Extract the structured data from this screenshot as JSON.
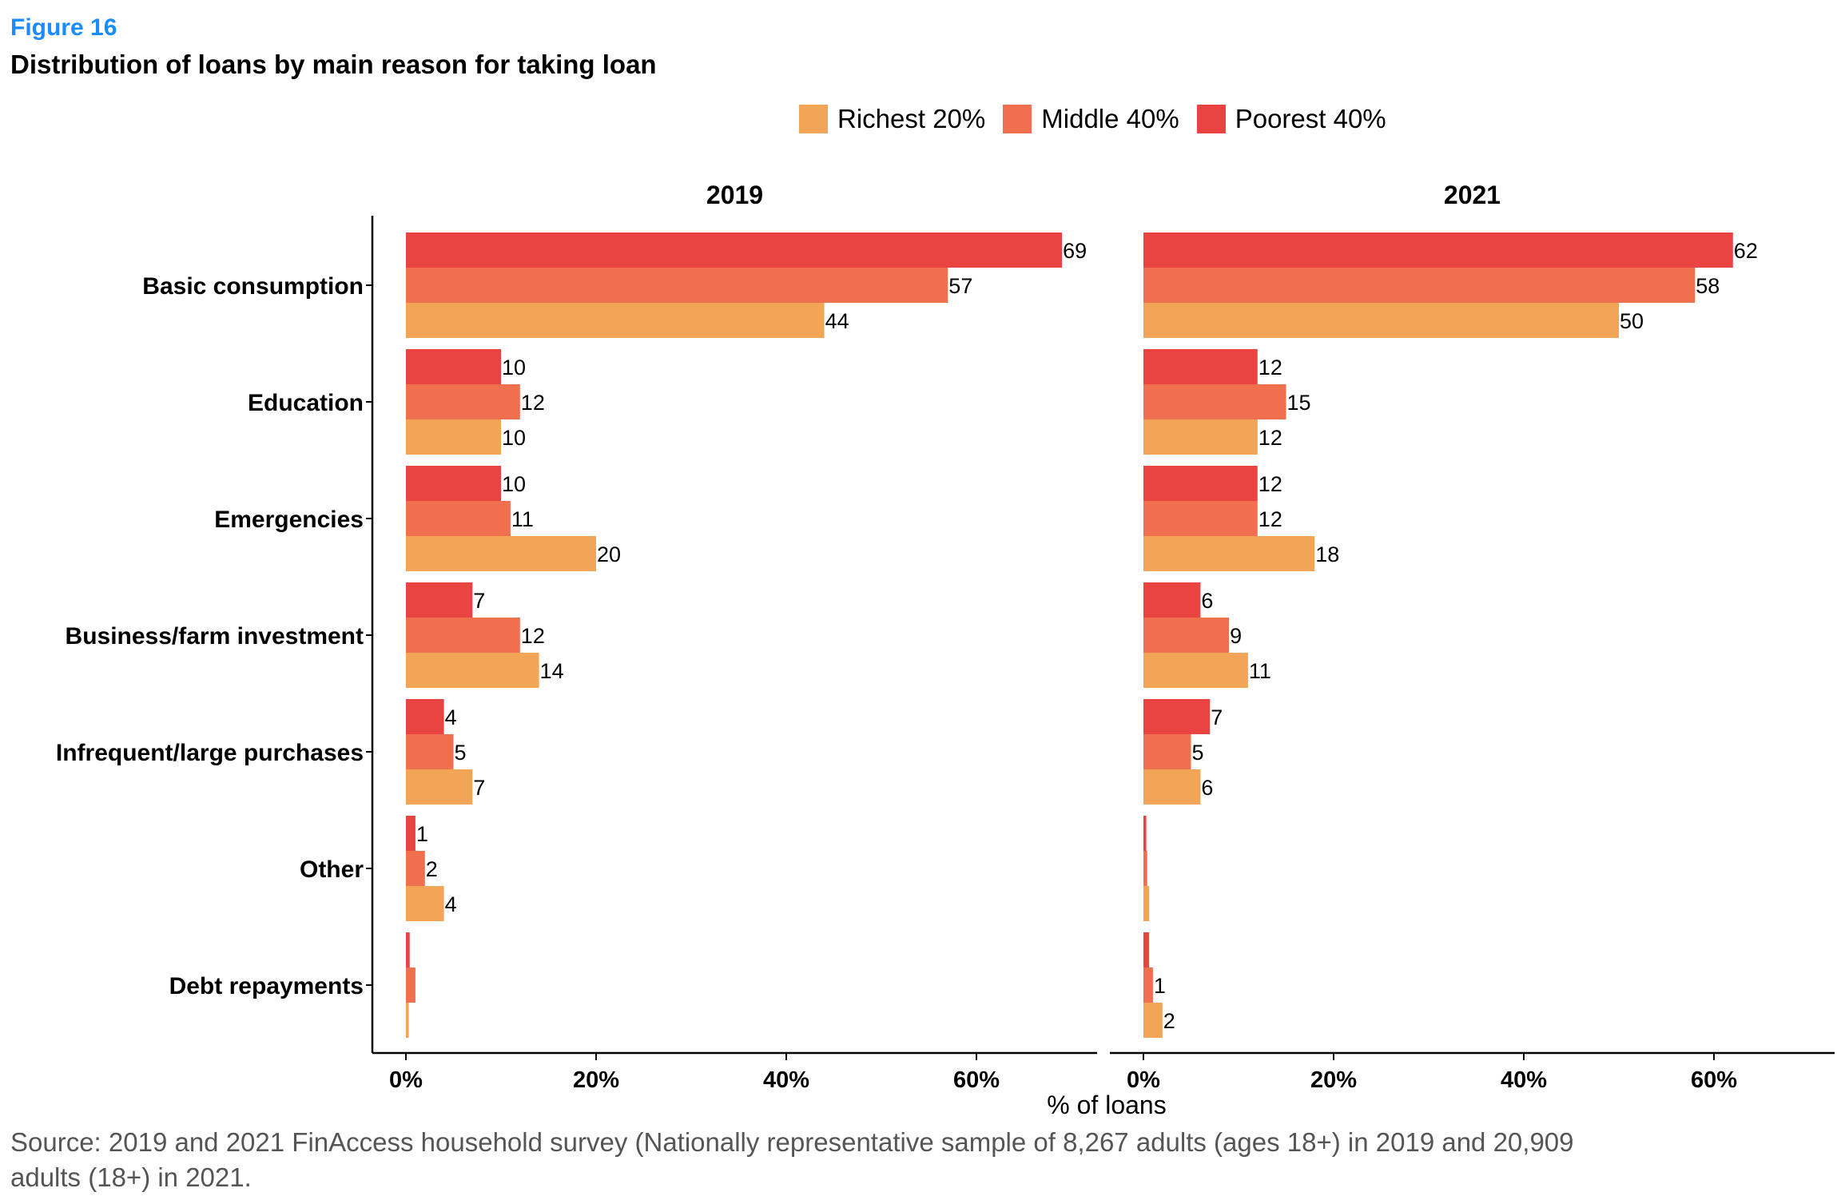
{
  "figure_label": "Figure 16",
  "title": "Distribution of loans by main reason for taking loan",
  "source": "Source: 2019 and 2021 FinAccess household survey (Nationally representative sample of 8,267 adults (ages 18+) in 2019 and 20,909 adults (18+) in 2021.",
  "colors": {
    "Richest 20%": "#f2a556",
    "Middle 40%": "#ef6f4f",
    "Poorest 40%": "#ea4442"
  },
  "chart_data": {
    "type": "bar",
    "orientation": "horizontal",
    "xlabel": "% of loans",
    "xlim": [
      0,
      70
    ],
    "xticks": [
      "0%",
      "20%",
      "40%",
      "60%"
    ],
    "legend_position": "top",
    "legend": [
      "Richest 20%",
      "Middle 40%",
      "Poorest 40%"
    ],
    "categories": [
      "Basic consumption",
      "Education",
      "Emergencies",
      "Business/farm investment",
      "Infrequent/large purchases",
      "Other",
      "Debt repayments"
    ],
    "panels": [
      {
        "title": "2019",
        "series": [
          {
            "name": "Poorest 40%",
            "values": [
              69,
              10,
              10,
              7,
              4,
              1,
              0.4
            ],
            "labels": [
              "69",
              "10",
              "10",
              "7",
              "4",
              "1",
              ""
            ]
          },
          {
            "name": "Middle 40%",
            "values": [
              57,
              12,
              11,
              12,
              5,
              2,
              1
            ],
            "labels": [
              "57",
              "12",
              "11",
              "12",
              "5",
              "2",
              ""
            ]
          },
          {
            "name": "Richest 20%",
            "values": [
              44,
              10,
              20,
              14,
              7,
              4,
              0.3
            ],
            "labels": [
              "44",
              "10",
              "20",
              "14",
              "7",
              "4",
              ""
            ]
          }
        ]
      },
      {
        "title": "2021",
        "series": [
          {
            "name": "Poorest 40%",
            "values": [
              62,
              12,
              12,
              6,
              7,
              0.3,
              0.6
            ],
            "labels": [
              "62",
              "12",
              "12",
              "6",
              "7",
              "",
              ""
            ]
          },
          {
            "name": "Middle 40%",
            "values": [
              58,
              15,
              12,
              9,
              5,
              0.4,
              1
            ],
            "labels": [
              "58",
              "15",
              "12",
              "9",
              "5",
              "",
              "1"
            ]
          },
          {
            "name": "Richest 20%",
            "values": [
              50,
              12,
              18,
              11,
              6,
              0.6,
              2
            ],
            "labels": [
              "50",
              "12",
              "18",
              "11",
              "6",
              "",
              "2"
            ]
          }
        ]
      }
    ]
  }
}
